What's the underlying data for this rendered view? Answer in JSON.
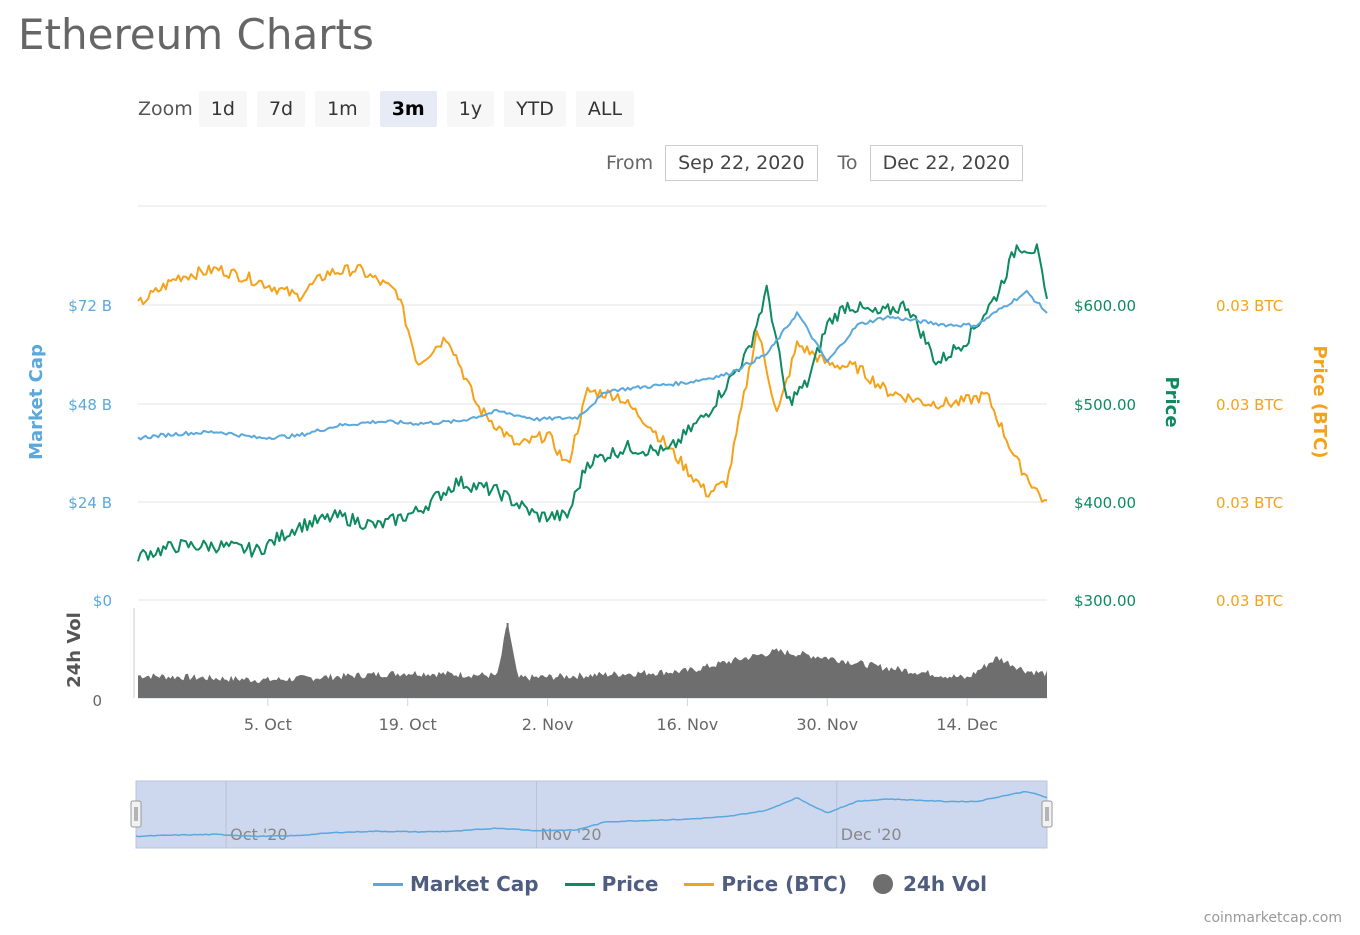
{
  "page": {
    "title": "Ethereum Charts",
    "credit": "coinmarketcap.com"
  },
  "zoom": {
    "label": "Zoom",
    "buttons": [
      "1d",
      "7d",
      "1m",
      "3m",
      "1y",
      "YTD",
      "ALL"
    ],
    "active": "3m"
  },
  "range": {
    "from_label": "From",
    "from_value": "Sep 22, 2020",
    "to_label": "To",
    "to_value": "Dec 22, 2020"
  },
  "colors": {
    "market_cap": "#5ba8dc",
    "price": "#0e8a5f",
    "price_btc": "#f5a21b",
    "volume": "#6e6e6e",
    "navigator_fill": "#cdd8ee"
  },
  "chart_data": {
    "type": "line",
    "x_ticks": [
      "5. Oct",
      "19. Oct",
      "2. Nov",
      "16. Nov",
      "30. Nov",
      "14. Dec"
    ],
    "x_range": [
      "Sep 22, 2020",
      "Dec 22, 2020"
    ],
    "axes": {
      "market_cap": {
        "label": "Market Cap",
        "ticks": [
          "$0",
          "$24 B",
          "$48 B",
          "$72 B"
        ],
        "range": [
          0,
          96
        ]
      },
      "price": {
        "label": "Price",
        "ticks": [
          "$300.00",
          "$400.00",
          "$500.00",
          "$600.00"
        ],
        "range": [
          300,
          700
        ]
      },
      "price_btc": {
        "label": "Price (BTC)",
        "ticks": [
          "0.03 BTC",
          "0.03 BTC",
          "0.03 BTC",
          "0.03 BTC"
        ]
      },
      "volume": {
        "label": "24h Vol",
        "ticks": [
          "0"
        ]
      }
    },
    "series": [
      {
        "name": "Market Cap",
        "unit": "B USD",
        "x": [
          "2020-09-22",
          "2020-09-26",
          "2020-09-30",
          "2020-10-04",
          "2020-10-08",
          "2020-10-12",
          "2020-10-16",
          "2020-10-20",
          "2020-10-24",
          "2020-10-28",
          "2020-11-01",
          "2020-11-05",
          "2020-11-08",
          "2020-11-12",
          "2020-11-16",
          "2020-11-20",
          "2020-11-24",
          "2020-11-27",
          "2020-11-30",
          "2020-12-03",
          "2020-12-06",
          "2020-12-09",
          "2020-12-12",
          "2020-12-15",
          "2020-12-18",
          "2020-12-20",
          "2020-12-22"
        ],
        "values": [
          39.5,
          40.5,
          41,
          39.5,
          40,
          42.5,
          43.5,
          43,
          43.5,
          46,
          44,
          44.5,
          51,
          52,
          53,
          55,
          60,
          70,
          58,
          67,
          69,
          68,
          67,
          67,
          72,
          75,
          70
        ]
      },
      {
        "name": "Price",
        "unit": "USD",
        "x": [
          "2020-09-22",
          "2020-09-26",
          "2020-09-30",
          "2020-10-04",
          "2020-10-08",
          "2020-10-12",
          "2020-10-16",
          "2020-10-20",
          "2020-10-24",
          "2020-10-28",
          "2020-11-01",
          "2020-11-04",
          "2020-11-06",
          "2020-11-10",
          "2020-11-14",
          "2020-11-18",
          "2020-11-22",
          "2020-11-24",
          "2020-11-26",
          "2020-11-28",
          "2020-11-30",
          "2020-12-02",
          "2020-12-05",
          "2020-12-08",
          "2020-12-11",
          "2020-12-14",
          "2020-12-17",
          "2020-12-19",
          "2020-12-21",
          "2020-12-22"
        ],
        "values": [
          345,
          355,
          355,
          350,
          375,
          385,
          375,
          390,
          420,
          410,
          385,
          385,
          440,
          455,
          450,
          490,
          550,
          615,
          500,
          520,
          580,
          600,
          590,
          600,
          540,
          565,
          610,
          660,
          655,
          600
        ]
      },
      {
        "name": "Price (BTC)",
        "unit": "BTC",
        "relative_level": true,
        "x": [
          "2020-09-22",
          "2020-09-26",
          "2020-09-30",
          "2020-10-04",
          "2020-10-08",
          "2020-10-11",
          "2020-10-14",
          "2020-10-18",
          "2020-10-20",
          "2020-10-23",
          "2020-10-26",
          "2020-10-30",
          "2020-11-02",
          "2020-11-04",
          "2020-11-06",
          "2020-11-09",
          "2020-11-12",
          "2020-11-15",
          "2020-11-18",
          "2020-11-20",
          "2020-11-23",
          "2020-11-25",
          "2020-11-27",
          "2020-11-30",
          "2020-12-03",
          "2020-12-06",
          "2020-12-10",
          "2020-12-13",
          "2020-12-16",
          "2020-12-19",
          "2020-12-22"
        ],
        "values": [
          0.75,
          0.82,
          0.84,
          0.81,
          0.77,
          0.83,
          0.84,
          0.78,
          0.6,
          0.67,
          0.49,
          0.39,
          0.42,
          0.34,
          0.53,
          0.52,
          0.45,
          0.36,
          0.27,
          0.3,
          0.69,
          0.47,
          0.65,
          0.6,
          0.59,
          0.53,
          0.5,
          0.5,
          0.52,
          0.35,
          0.24
        ]
      },
      {
        "name": "24h Vol",
        "relative_level": true,
        "x": [
          "2020-09-22",
          "2020-10-05",
          "2020-10-19",
          "2020-10-28",
          "2020-10-29",
          "2020-10-30",
          "2020-11-16",
          "2020-11-22",
          "2020-11-25",
          "2020-11-30",
          "2020-12-05",
          "2020-12-14",
          "2020-12-17",
          "2020-12-20",
          "2020-12-22"
        ],
        "values": [
          0.25,
          0.2,
          0.28,
          0.25,
          0.85,
          0.22,
          0.3,
          0.45,
          0.52,
          0.45,
          0.35,
          0.22,
          0.45,
          0.3,
          0.27
        ]
      }
    ],
    "navigator": {
      "labels": [
        "Oct '20",
        "Nov '20",
        "Dec '20"
      ]
    },
    "grid": true,
    "legend": {
      "position": "bottom"
    }
  }
}
